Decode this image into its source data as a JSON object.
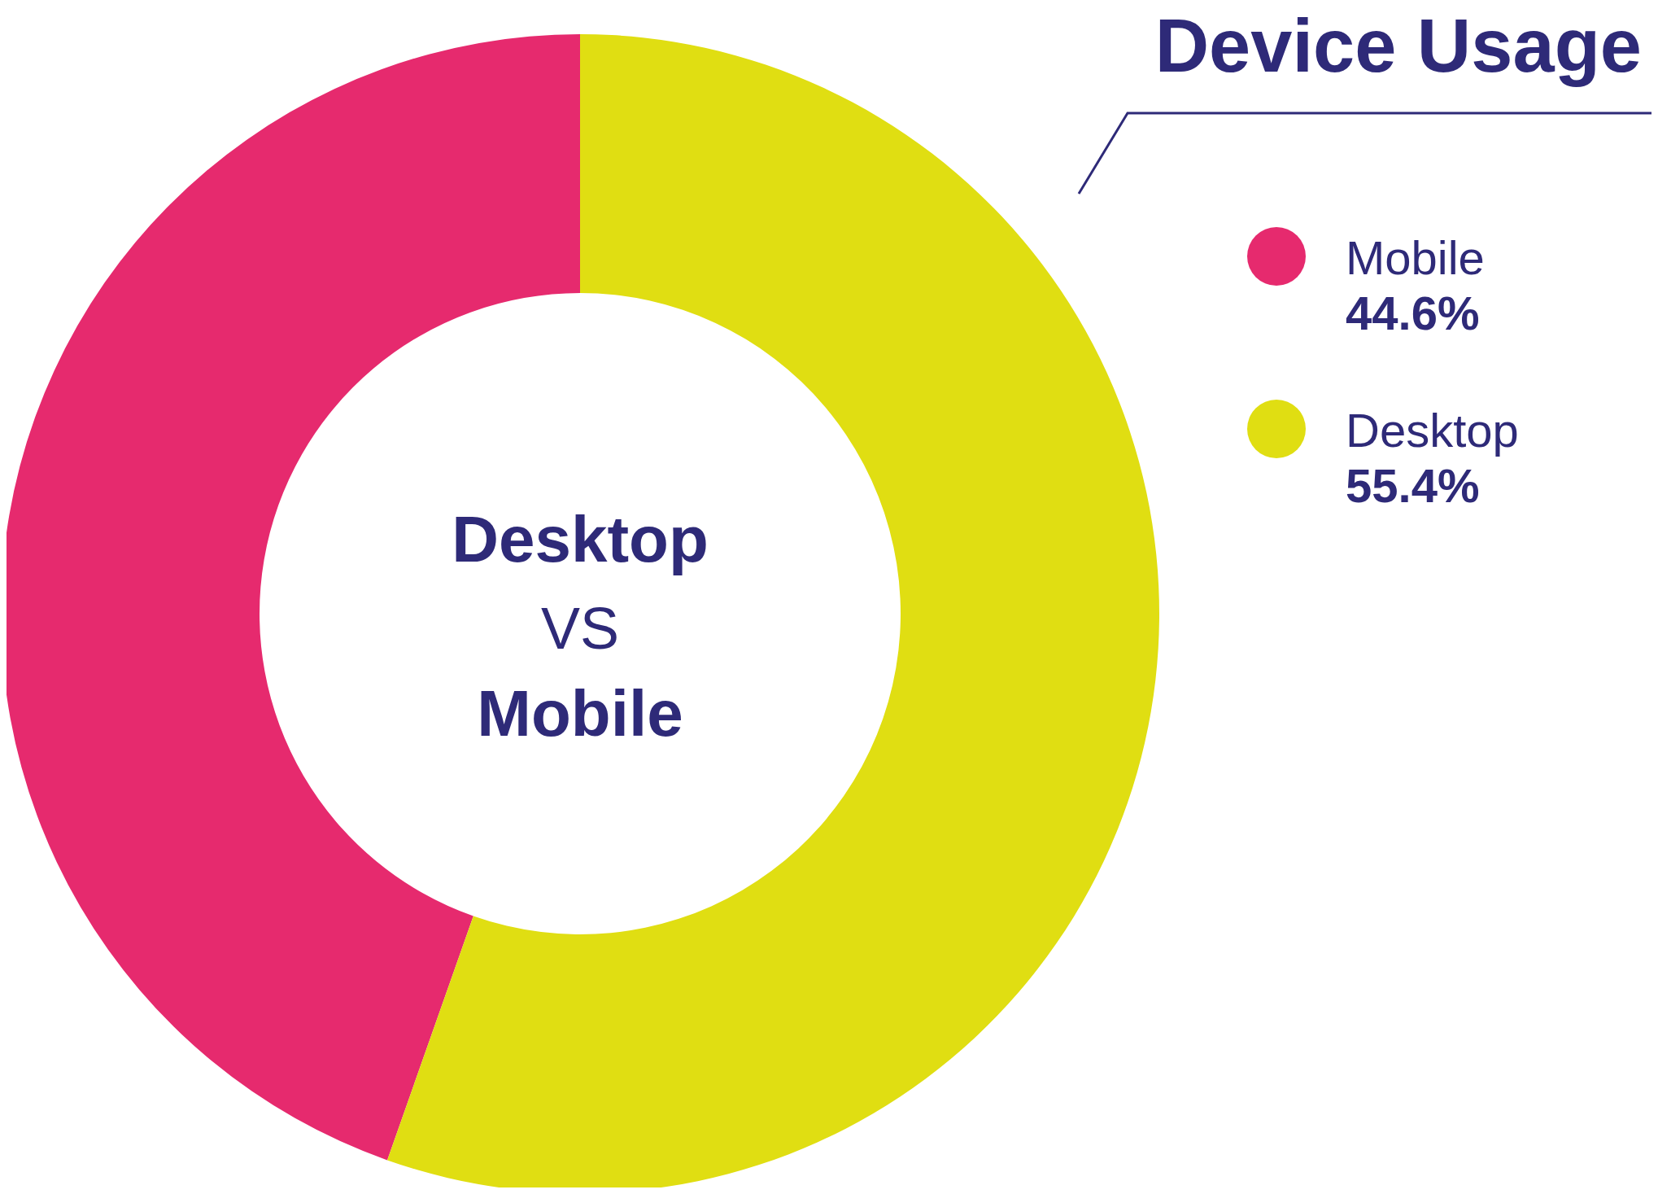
{
  "chart_data": {
    "type": "donut",
    "title": "Device Usage",
    "categories": [
      "Mobile",
      "Desktop"
    ],
    "values": [
      44.6,
      55.4
    ],
    "colors": [
      "#e62a6e",
      "#e0de12"
    ],
    "value_labels": [
      "44.6%",
      "55.4%"
    ],
    "legend": "top right",
    "annotations": [
      "Desktop",
      "VS",
      "Mobile"
    ]
  }
}
